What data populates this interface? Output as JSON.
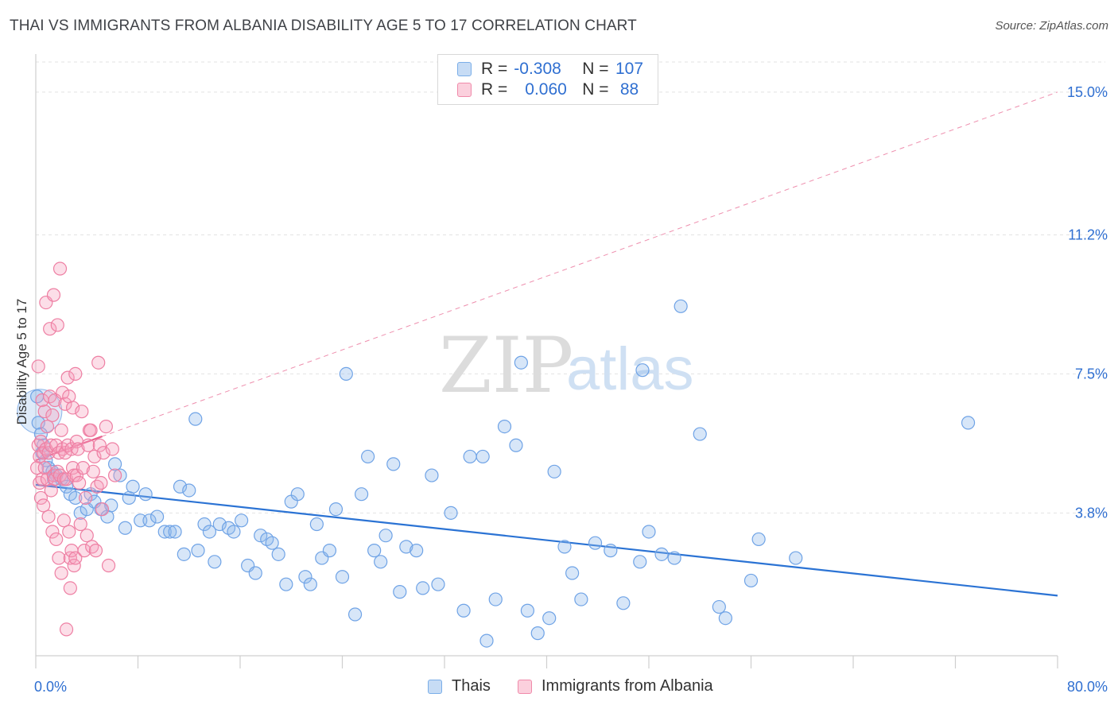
{
  "title": "THAI VS IMMIGRANTS FROM ALBANIA DISABILITY AGE 5 TO 17 CORRELATION CHART",
  "source": "Source: ZipAtlas.com",
  "watermark": {
    "zip": "ZIP",
    "atlas": "atlas"
  },
  "legend": {
    "rows": [
      {
        "r_label": "R =",
        "r_value": "-0.308",
        "n_label": "N =",
        "n_value": "107",
        "color": "#7aaee8",
        "fill": "#c7dcf5"
      },
      {
        "r_label": "R =",
        "r_value": "0.060",
        "n_label": "N =",
        "n_value": "88",
        "color": "#f08aaa",
        "fill": "#fbd0dd"
      }
    ]
  },
  "bottom_legend": {
    "items": [
      "Thais",
      "Immigrants from Albania"
    ]
  },
  "chart_data": {
    "type": "scatter",
    "title": "THAI VS IMMIGRANTS FROM ALBANIA DISABILITY AGE 5 TO 17 CORRELATION CHART",
    "xlabel": "",
    "ylabel": "Disability Age 5 to 17",
    "xlim": [
      0,
      80
    ],
    "ylim": [
      0,
      15.8
    ],
    "x_tick_labels": [
      "0.0%",
      "80.0%"
    ],
    "y_ticks": [
      3.8,
      7.5,
      11.2,
      15.0
    ],
    "y_tick_labels": [
      "3.8%",
      "7.5%",
      "11.2%",
      "15.0%"
    ],
    "grid": true,
    "legend_position": "top-center",
    "colors": {
      "Thais": "#2b73d4",
      "Immigrants from Albania": "#e8608c"
    },
    "series": [
      {
        "name": "Thais",
        "r": -0.308,
        "n": 107,
        "trend": {
          "x": [
            0,
            80
          ],
          "y": [
            4.55,
            1.6
          ]
        },
        "x": [
          0.1,
          0.2,
          0.4,
          0.6,
          0.8,
          1.0,
          1.3,
          1.6,
          2.0,
          2.4,
          2.7,
          3.1,
          3.5,
          4.0,
          4.3,
          4.6,
          5.1,
          5.6,
          5.9,
          6.2,
          6.6,
          7.0,
          7.3,
          7.6,
          8.2,
          8.6,
          8.9,
          9.5,
          10.1,
          10.5,
          10.9,
          11.3,
          11.6,
          12.0,
          12.5,
          12.7,
          13.2,
          13.6,
          14.0,
          14.4,
          15.1,
          15.5,
          16.1,
          16.6,
          17.2,
          17.6,
          18.1,
          18.5,
          19.0,
          19.6,
          20.0,
          20.5,
          21.1,
          21.5,
          22.0,
          22.4,
          23.0,
          23.5,
          24.0,
          24.3,
          25.0,
          25.5,
          26.0,
          26.5,
          27.0,
          27.4,
          28.0,
          28.5,
          29.0,
          29.8,
          30.3,
          31.0,
          31.5,
          32.5,
          33.5,
          34.0,
          35.0,
          35.3,
          36.0,
          36.7,
          37.6,
          38.0,
          38.5,
          39.3,
          40.2,
          40.6,
          41.4,
          42.0,
          42.7,
          43.8,
          45.0,
          46.0,
          47.3,
          47.5,
          48.0,
          49.0,
          50.0,
          50.5,
          52.0,
          53.5,
          54.0,
          56.0,
          56.6,
          59.5,
          73.0,
          1.4,
          0.5
        ],
        "y": [
          6.9,
          6.2,
          5.9,
          5.6,
          5.2,
          5.0,
          4.9,
          4.8,
          4.7,
          4.5,
          4.3,
          4.2,
          3.8,
          3.9,
          4.3,
          4.1,
          3.9,
          3.7,
          4.0,
          5.1,
          4.8,
          3.4,
          4.2,
          4.5,
          3.6,
          4.3,
          3.6,
          3.7,
          3.3,
          3.3,
          3.3,
          4.5,
          2.7,
          4.4,
          6.3,
          2.8,
          3.5,
          3.3,
          2.5,
          3.5,
          3.4,
          3.3,
          3.6,
          2.4,
          2.2,
          3.2,
          3.1,
          3.0,
          2.7,
          1.9,
          4.1,
          4.3,
          2.1,
          1.9,
          3.5,
          2.6,
          2.8,
          3.9,
          2.1,
          7.5,
          1.1,
          4.3,
          5.3,
          2.8,
          2.5,
          3.2,
          5.1,
          1.7,
          2.9,
          2.8,
          1.8,
          4.8,
          1.9,
          3.8,
          1.2,
          5.3,
          5.3,
          0.4,
          1.5,
          6.1,
          5.6,
          7.8,
          1.2,
          0.6,
          1.0,
          4.9,
          2.9,
          2.2,
          1.5,
          3.0,
          2.8,
          1.4,
          2.5,
          7.6,
          3.3,
          2.7,
          2.6,
          9.3,
          5.9,
          1.3,
          1.0,
          2.0,
          3.1,
          2.6,
          6.2,
          4.7,
          5.4
        ]
      },
      {
        "name": "Immigrants from Albania",
        "r": 0.06,
        "n": 88,
        "trend": {
          "x": [
            0,
            80
          ],
          "y": [
            5.2,
            15.0
          ]
        },
        "x": [
          0.1,
          0.2,
          0.2,
          0.3,
          0.3,
          0.4,
          0.4,
          0.5,
          0.5,
          0.6,
          0.6,
          0.7,
          0.7,
          0.8,
          0.8,
          0.9,
          0.9,
          1.0,
          1.0,
          1.1,
          1.1,
          1.2,
          1.2,
          1.3,
          1.3,
          1.4,
          1.4,
          1.5,
          1.5,
          1.6,
          1.6,
          1.7,
          1.7,
          1.8,
          1.8,
          1.9,
          1.9,
          2.0,
          2.0,
          2.1,
          2.1,
          2.2,
          2.2,
          2.3,
          2.3,
          2.4,
          2.4,
          2.5,
          2.5,
          2.6,
          2.6,
          2.7,
          2.7,
          2.8,
          2.8,
          2.9,
          2.9,
          3.0,
          3.0,
          3.1,
          3.1,
          3.2,
          3.2,
          3.3,
          3.4,
          3.5,
          3.6,
          3.7,
          3.8,
          3.9,
          4.0,
          4.1,
          4.2,
          4.3,
          4.4,
          4.5,
          4.6,
          4.7,
          4.8,
          4.9,
          5.0,
          5.1,
          5.2,
          5.3,
          5.5,
          5.7,
          6.0,
          6.2
        ],
        "y": [
          5.0,
          5.6,
          7.7,
          4.6,
          5.3,
          4.2,
          5.7,
          4.7,
          6.8,
          4.0,
          5.4,
          5.0,
          6.5,
          5.5,
          9.4,
          4.7,
          6.1,
          5.4,
          3.7,
          8.7,
          6.9,
          4.4,
          5.6,
          6.4,
          3.3,
          9.6,
          4.8,
          4.7,
          6.8,
          3.1,
          5.6,
          8.8,
          4.9,
          5.4,
          2.6,
          10.3,
          4.8,
          2.2,
          6.0,
          5.5,
          7.0,
          4.7,
          3.6,
          6.7,
          5.4,
          0.7,
          4.7,
          7.4,
          5.6,
          3.3,
          6.9,
          1.8,
          2.6,
          5.5,
          2.8,
          6.6,
          5.0,
          2.4,
          4.8,
          2.6,
          7.5,
          5.7,
          4.8,
          5.5,
          4.6,
          3.5,
          6.5,
          5.0,
          2.8,
          4.2,
          3.2,
          5.6,
          6.0,
          6.0,
          2.9,
          4.9,
          5.3,
          2.8,
          4.5,
          7.8,
          5.6,
          4.6,
          3.9,
          5.4,
          6.1,
          2.4,
          5.5,
          4.8
        ]
      }
    ]
  }
}
